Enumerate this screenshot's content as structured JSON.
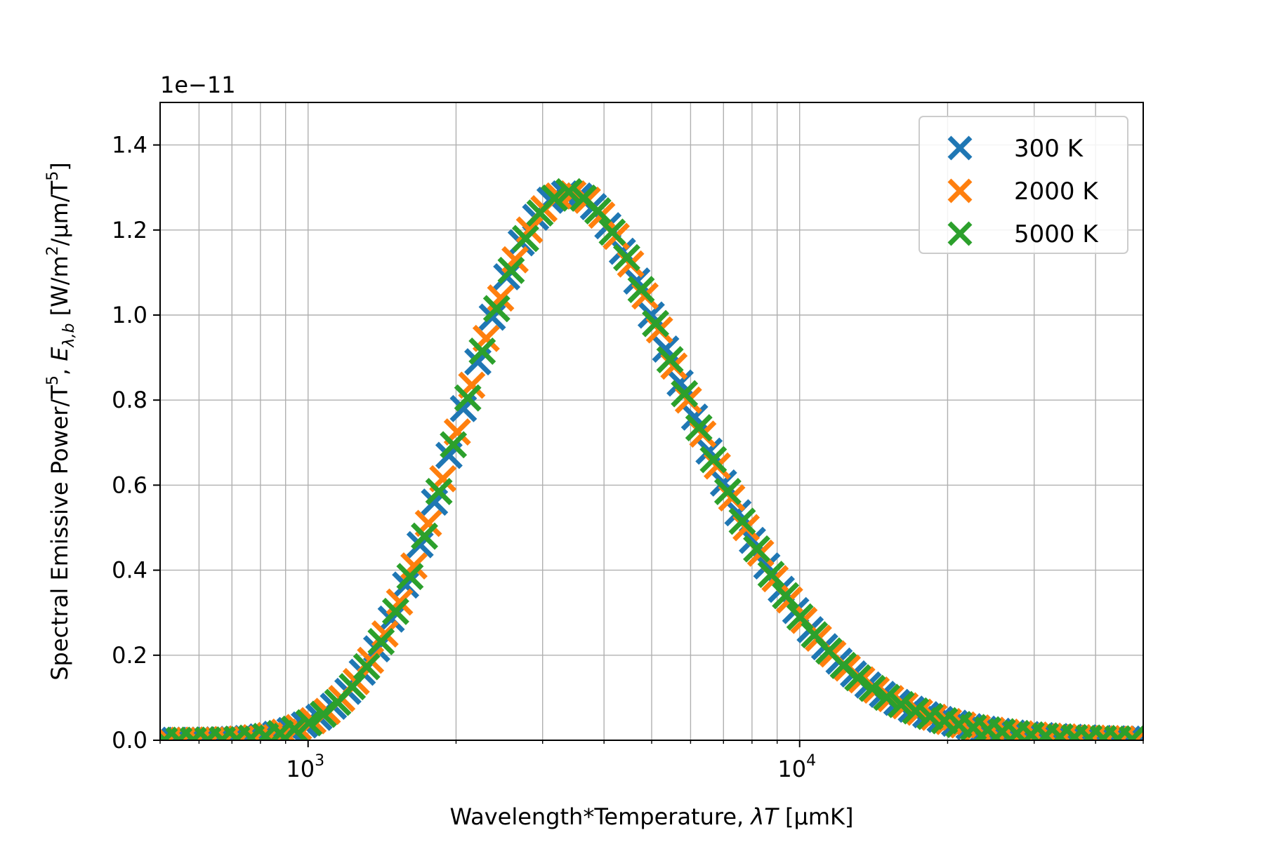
{
  "chart_data": {
    "type": "scatter",
    "title": "",
    "xlabel": "Wavelength*Temperature, λT [μmK]",
    "ylabel": "Spectral Emissive Power/T⁵, E_λ,b [W/m²/μm/T⁵]",
    "x_scale": "log",
    "xlim": [
      500,
      50000
    ],
    "ylim": [
      0,
      1.5e-11
    ],
    "y_offset_text": "1e−11",
    "x_ticks": [
      {
        "value": 1000,
        "base": "10",
        "exp": "3"
      },
      {
        "value": 10000,
        "base": "10",
        "exp": "4"
      }
    ],
    "y_ticks": [
      {
        "value": 0.0,
        "label": "0.0"
      },
      {
        "value": 2e-12,
        "label": "0.2"
      },
      {
        "value": 4e-12,
        "label": "0.4"
      },
      {
        "value": 6e-12,
        "label": "0.6"
      },
      {
        "value": 8e-12,
        "label": "0.8"
      },
      {
        "value": 1e-11,
        "label": "1.0"
      },
      {
        "value": 1.2e-11,
        "label": "1.2"
      },
      {
        "value": 1.4e-11,
        "label": "1.4"
      }
    ],
    "grid": true,
    "marker": "x",
    "legend": {
      "position": "top-right"
    },
    "series": [
      {
        "name": "300 K",
        "color": "#1f77b4",
        "x": [
          500,
          535,
          572,
          612,
          655,
          701,
          750,
          803,
          859,
          919,
          983,
          1052,
          1126,
          1205,
          1289,
          1379,
          1476,
          1579,
          1690,
          1808,
          1935,
          2070,
          2215,
          2370,
          2536,
          2714,
          2904,
          3107,
          3325,
          3558,
          3807,
          4073,
          4359,
          4664,
          4990,
          5340,
          5714,
          6114,
          6542,
          7000,
          7490,
          8015,
          8576,
          9176,
          9819,
          10506,
          11242,
          12029,
          12871,
          13772,
          14736,
          15768,
          16872,
          18053,
          19317,
          20669,
          22116,
          23664,
          25321,
          27093,
          28990,
          31019,
          33191,
          35514,
          38000,
          40660,
          43507,
          46552,
          50000
        ],
        "y": [
          1.8e-16,
          6e-16,
          1.7e-15,
          4.3e-15,
          1e-14,
          2.1e-14,
          4.2e-14,
          7.9e-14,
          1.4e-13,
          2.3e-13,
          3.6e-13,
          5.4e-13,
          8e-13,
          1.15e-12,
          1.6e-12,
          2.15e-12,
          2.85e-12,
          3.65e-12,
          4.6e-12,
          5.6e-12,
          6.7e-12,
          7.8e-12,
          8.9e-12,
          9.95e-12,
          1.09e-11,
          1.17e-11,
          1.23e-11,
          1.27e-11,
          1.285e-11,
          1.28e-11,
          1.255e-11,
          1.21e-11,
          1.15e-11,
          1.08e-11,
          1e-11,
          9.2e-12,
          8.4e-12,
          7.6e-12,
          6.8e-12,
          6.05e-12,
          5.35e-12,
          4.7e-12,
          4.1e-12,
          3.55e-12,
          3.05e-12,
          2.6e-12,
          2.2e-12,
          1.86e-12,
          1.56e-12,
          1.3e-12,
          1.08e-12,
          8.9e-13,
          7.3e-13,
          6e-13,
          4.9e-13,
          4e-13,
          3.2e-13,
          2.6e-13,
          2.1e-13,
          1.7e-13,
          1.35e-13,
          1.1e-13,
          8.7e-14,
          7e-14,
          5.6e-14,
          4.4e-14,
          3.5e-14,
          2.8e-14,
          2.2e-14
        ]
      },
      {
        "name": "2000 K",
        "color": "#ff7f0e",
        "x": [
          520,
          556,
          595,
          637,
          681,
          729,
          780,
          835,
          893,
          956,
          1023,
          1094,
          1171,
          1253,
          1340,
          1434,
          1535,
          1642,
          1757,
          1880,
          2012,
          2153,
          2303,
          2465,
          2637,
          2822,
          3019,
          3231,
          3457,
          3699,
          3958,
          4235,
          4531,
          4848,
          5188,
          5551,
          5939,
          6355,
          6800,
          7276,
          7785,
          8330,
          8913,
          9537,
          10205,
          10919,
          11684,
          12501,
          13376,
          14313,
          15315,
          16387,
          17534,
          18761,
          20074,
          21480,
          22983,
          24592,
          26313,
          28155,
          30126,
          32235,
          34491,
          36905,
          39489,
          42253,
          45211,
          48376
        ],
        "y": [
          3.5e-16,
          1.1e-15,
          3e-15,
          7.2e-15,
          1.6e-14,
          3.2e-14,
          6.1e-14,
          1.1e-13,
          1.9e-13,
          3e-13,
          4.6e-13,
          6.8e-13,
          9.8e-13,
          1.38e-12,
          1.88e-12,
          2.5e-12,
          3.25e-12,
          4.1e-12,
          5.1e-12,
          6.15e-12,
          7.25e-12,
          8.35e-12,
          9.45e-12,
          1.04e-11,
          1.13e-11,
          1.2e-11,
          1.25e-11,
          1.28e-11,
          1.285e-11,
          1.27e-11,
          1.235e-11,
          1.185e-11,
          1.12e-11,
          1.045e-11,
          9.65e-12,
          8.8e-12,
          8e-12,
          7.2e-12,
          6.45e-12,
          5.7e-12,
          5e-12,
          4.4e-12,
          3.8e-12,
          3.3e-12,
          2.82e-12,
          2.4e-12,
          2.03e-12,
          1.7e-12,
          1.42e-12,
          1.18e-12,
          9.8e-13,
          8.1e-13,
          6.6e-13,
          5.4e-13,
          4.4e-13,
          3.6e-13,
          2.9e-13,
          2.35e-13,
          1.9e-13,
          1.5e-13,
          1.22e-13,
          9.7e-14,
          7.8e-14,
          6.2e-14,
          5e-14,
          4e-14,
          3.1e-14,
          2.5e-14
        ]
      },
      {
        "name": "5000 K",
        "color": "#2ca02c",
        "x": [
          510,
          546,
          584,
          625,
          669,
          716,
          766,
          819,
          877,
          938,
          1004,
          1074,
          1149,
          1230,
          1316,
          1408,
          1507,
          1612,
          1725,
          1846,
          1975,
          2113,
          2261,
          2419,
          2589,
          2770,
          2964,
          3171,
          3393,
          3631,
          3885,
          4157,
          4448,
          4759,
          5092,
          5449,
          5830,
          6238,
          6675,
          7142,
          7642,
          8177,
          8749,
          9362,
          10017,
          10718,
          11469,
          12271,
          13130,
          14050,
          15033,
          16085,
          17211,
          18416,
          19705,
          21084,
          22560,
          24139,
          25829,
          27637,
          29572,
          31642,
          33857,
          36227,
          38763,
          41476,
          44380,
          47486
        ],
        "y": [
          2.5e-16,
          8.2e-16,
          2.3e-15,
          5.6e-15,
          1.25e-14,
          2.6e-14,
          5e-14,
          9.2e-14,
          1.6e-13,
          2.6e-13,
          4.1e-13,
          6.1e-13,
          8.9e-13,
          1.26e-12,
          1.73e-12,
          2.32e-12,
          3.03e-12,
          3.85e-12,
          4.8e-12,
          5.85e-12,
          6.95e-12,
          8.05e-12,
          9.15e-12,
          1.015e-11,
          1.105e-11,
          1.18e-11,
          1.24e-11,
          1.275e-11,
          1.29e-11,
          1.275e-11,
          1.245e-11,
          1.195e-11,
          1.135e-11,
          1.06e-11,
          9.8e-12,
          8.95e-12,
          8.15e-12,
          7.35e-12,
          6.6e-12,
          5.85e-12,
          5.15e-12,
          4.5e-12,
          3.9e-12,
          3.4e-12,
          2.9e-12,
          2.48e-12,
          2.1e-12,
          1.76e-12,
          1.47e-12,
          1.22e-12,
          1.01e-12,
          8.4e-13,
          6.9e-13,
          5.6e-13,
          4.6e-13,
          3.7e-13,
          3e-13,
          2.45e-13,
          2e-13,
          1.6e-13,
          1.27e-13,
          1.02e-13,
          8.1e-14,
          6.5e-14,
          5.2e-14,
          4.1e-14,
          3.3e-14,
          2.6e-14
        ]
      }
    ]
  }
}
